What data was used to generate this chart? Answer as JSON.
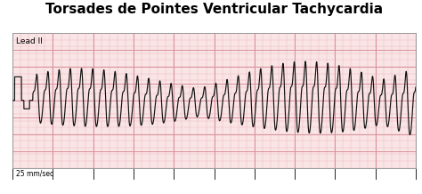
{
  "title": "Torsades de Pointes Ventricular Tachycardia",
  "title_fontsize": 11,
  "lead_label": "Lead II",
  "speed_label": "25 mm/sec",
  "background_color": "#ffffff",
  "ecg_bg_color": "#f9e4e6",
  "grid_major_color": "#d9909a",
  "grid_minor_color": "#eebbbd",
  "ecg_line_color": "#111111",
  "border_color": "#999999",
  "xlim": [
    0,
    10
  ],
  "ylim": [
    -2.0,
    2.0
  ],
  "figsize": [
    4.74,
    2.18
  ],
  "dpi": 100
}
